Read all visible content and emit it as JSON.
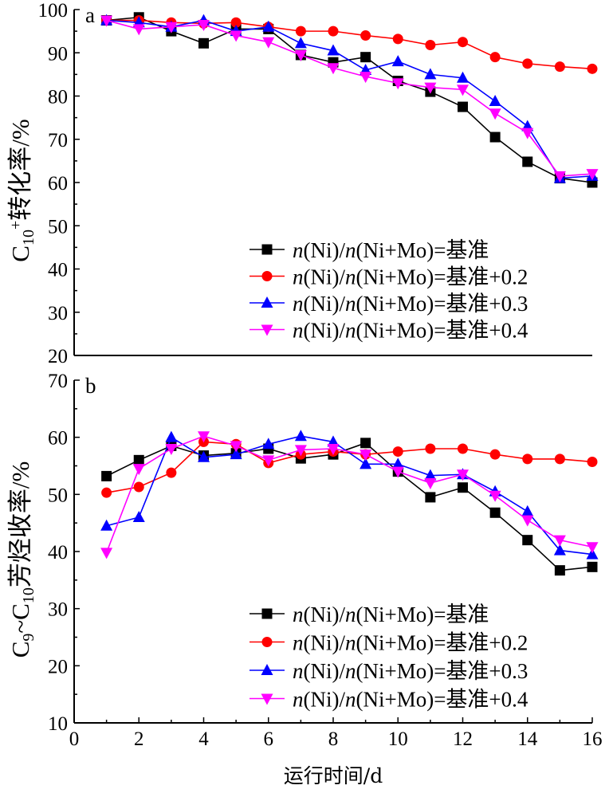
{
  "colors": {
    "series": [
      "#000000",
      "#ff0000",
      "#0000ff",
      "#ff00ff"
    ],
    "axis": "#000000",
    "background": "#ffffff"
  },
  "x_axis": {
    "label": "运行时间/d",
    "range": [
      0,
      16
    ],
    "ticks": [
      0,
      2,
      4,
      6,
      8,
      10,
      12,
      14,
      16
    ]
  },
  "chart_data": [
    {
      "type": "line",
      "panel": "a",
      "ylabel_main": "C",
      "ylabel_sub": "10",
      "ylabel_sup": "+",
      "ylabel_rest": "转化率/%",
      "ylim": [
        20,
        100
      ],
      "yticks": [
        20,
        30,
        40,
        50,
        60,
        70,
        80,
        90,
        100
      ],
      "grid": false,
      "legend_position": "bottom-right",
      "x": [
        1,
        2,
        3,
        4,
        5,
        6,
        7,
        8,
        9,
        10,
        11,
        12,
        13,
        14,
        15,
        16
      ],
      "series": [
        {
          "name": "n(Ni)/n(Ni+Mo)=基准",
          "marker": "square",
          "values": [
            97.5,
            98.2,
            95.0,
            92.2,
            95.5,
            95.5,
            89.5,
            87.8,
            89.0,
            83.5,
            81.0,
            77.5,
            70.5,
            64.8,
            61.0,
            60.0
          ]
        },
        {
          "name": "n(Ni)/n(Ni+Mo)=基准+0.2",
          "marker": "circle",
          "values": [
            97.5,
            97.5,
            97.0,
            96.8,
            97.0,
            96.0,
            95.0,
            95.0,
            94.0,
            93.2,
            91.8,
            92.5,
            89.0,
            87.5,
            86.8,
            86.3
          ]
        },
        {
          "name": "n(Ni)/n(Ni+Mo)=基准+0.3",
          "marker": "triangle-up",
          "values": [
            97.5,
            97.0,
            96.0,
            97.5,
            95.0,
            96.0,
            92.2,
            90.5,
            86.0,
            88.0,
            85.0,
            84.2,
            78.8,
            73.0,
            61.0,
            61.5
          ]
        },
        {
          "name": "n(Ni)/n(Ni+Mo)=基准+0.4",
          "marker": "triangle-down",
          "values": [
            97.5,
            95.5,
            96.0,
            96.5,
            94.0,
            92.5,
            89.5,
            86.5,
            84.5,
            83.0,
            82.0,
            81.5,
            76.0,
            71.5,
            61.5,
            62.0
          ]
        }
      ]
    },
    {
      "type": "line",
      "panel": "b",
      "ylabel_main": "C",
      "ylabel_sub9": "9",
      "ylabel_tilde": "~C",
      "ylabel_sub10": "10",
      "ylabel_rest": "芳烃收率/%",
      "ylim": [
        10,
        70
      ],
      "yticks": [
        10,
        20,
        30,
        40,
        50,
        60,
        70
      ],
      "grid": false,
      "legend_position": "bottom-right",
      "x": [
        1,
        2,
        3,
        4,
        5,
        6,
        7,
        8,
        9,
        10,
        11,
        12,
        13,
        14,
        15,
        16
      ],
      "series": [
        {
          "name": "n(Ni)/n(Ni+Mo)=基准",
          "marker": "square",
          "values": [
            53.2,
            56.0,
            58.5,
            56.8,
            57.2,
            58.0,
            56.3,
            57.0,
            59.0,
            54.0,
            49.5,
            51.2,
            46.8,
            42.0,
            36.7,
            37.3
          ]
        },
        {
          "name": "n(Ni)/n(Ni+Mo)=基准+0.2",
          "marker": "circle",
          "values": [
            50.3,
            51.3,
            53.8,
            59.2,
            58.8,
            55.5,
            57.0,
            57.5,
            57.0,
            57.5,
            58.0,
            58.0,
            57.0,
            56.2,
            56.2,
            55.7
          ]
        },
        {
          "name": "n(Ni)/n(Ni+Mo)=基准+0.3",
          "marker": "triangle-up",
          "values": [
            44.5,
            46.0,
            60.0,
            56.5,
            57.0,
            58.8,
            60.2,
            59.2,
            55.3,
            55.3,
            53.3,
            53.5,
            50.5,
            47.0,
            40.2,
            39.5
          ]
        },
        {
          "name": "n(Ni)/n(Ni+Mo)=基准+0.4",
          "marker": "triangle-down",
          "values": [
            39.8,
            54.5,
            58.0,
            60.2,
            58.5,
            56.0,
            57.8,
            58.0,
            57.0,
            54.0,
            52.0,
            53.5,
            49.8,
            45.5,
            42.0,
            40.8
          ]
        }
      ]
    }
  ]
}
